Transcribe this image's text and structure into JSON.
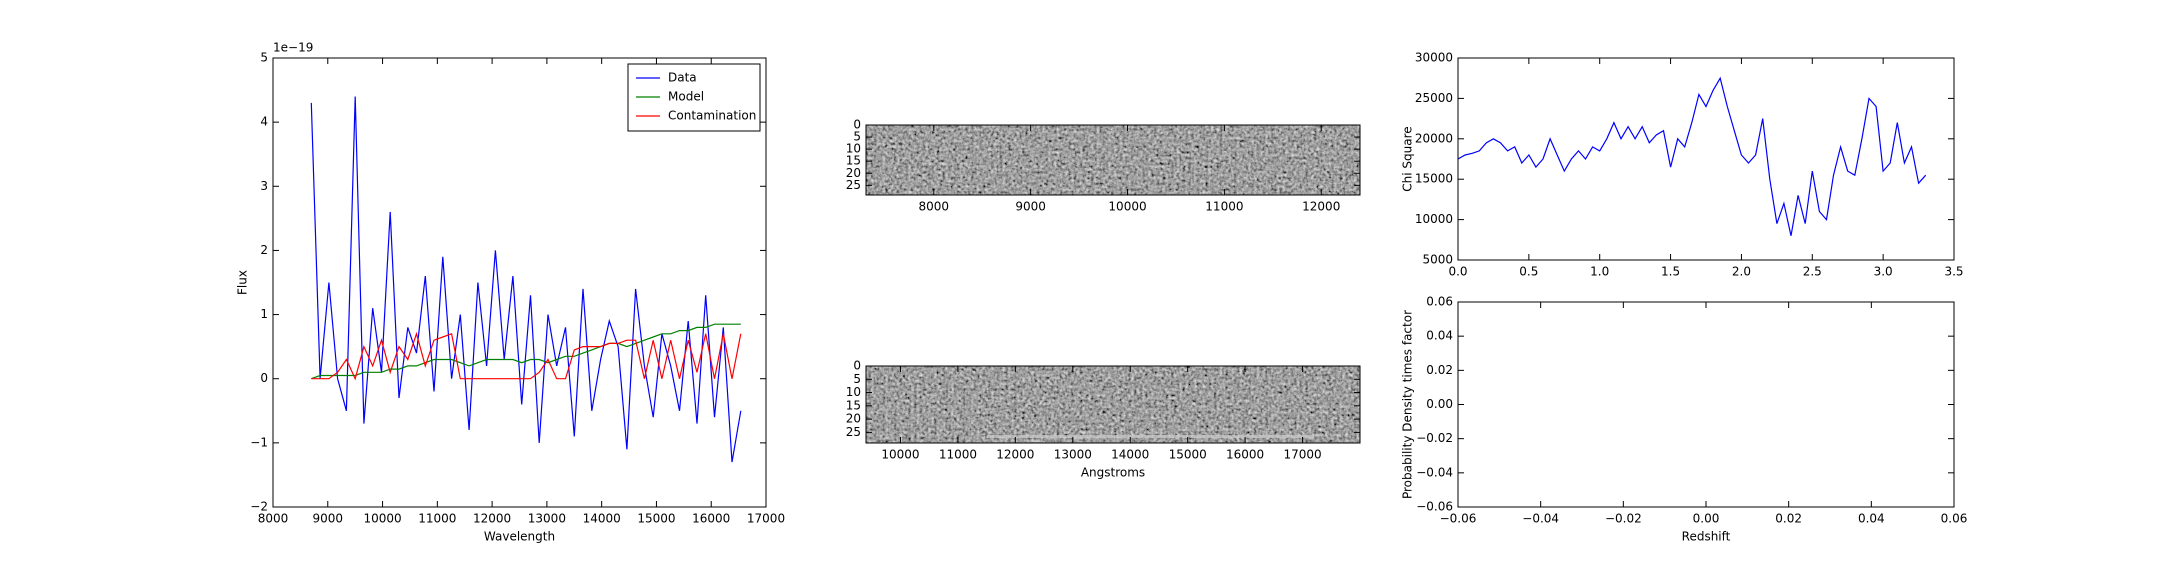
{
  "chart_data": [
    {
      "type": "line",
      "xlabel": "Wavelength",
      "ylabel": "Flux",
      "offset_label": "1e−19",
      "xlim": [
        8000,
        17000
      ],
      "xticks": [
        8000,
        9000,
        10000,
        11000,
        12000,
        13000,
        14000,
        15000,
        16000,
        17000
      ],
      "ylim": [
        -2,
        5
      ],
      "yticks": [
        {
          "value": -2,
          "label": "−2"
        },
        {
          "value": -1,
          "label": "−1"
        },
        0,
        1,
        2,
        3,
        4,
        5
      ],
      "legend": "upper right",
      "x": [
        8700,
        8860,
        9020,
        9180,
        9340,
        9500,
        9660,
        9820,
        9980,
        10140,
        10300,
        10460,
        10620,
        10780,
        10940,
        11100,
        11260,
        11420,
        11580,
        11740,
        11900,
        12060,
        12220,
        12380,
        12540,
        12700,
        12860,
        13020,
        13180,
        13340,
        13500,
        13660,
        13820,
        13980,
        14140,
        14300,
        14460,
        14620,
        14780,
        14940,
        15100,
        15260,
        15420,
        15580,
        15740,
        15900,
        16060,
        16220,
        16380,
        16540
      ],
      "series": [
        {
          "name": "Data",
          "color": "#0000ff",
          "values": [
            4.3,
            0,
            1.5,
            0,
            -0.5,
            4.4,
            -0.7,
            1.1,
            0.1,
            2.6,
            -0.3,
            0.8,
            0.4,
            1.6,
            -0.2,
            1.9,
            0.0,
            1.0,
            -0.8,
            1.5,
            0.2,
            2.0,
            0.3,
            1.6,
            -0.4,
            1.3,
            -1.0,
            1.0,
            0.2,
            0.8,
            -0.9,
            1.4,
            -0.5,
            0.3,
            0.9,
            0.5,
            -1.1,
            1.4,
            0.2,
            -0.6,
            0.7,
            0.2,
            -0.5,
            0.9,
            -0.7,
            1.3,
            -0.6,
            0.8,
            -1.3,
            -0.5
          ]
        },
        {
          "name": "Model",
          "color": "#008000",
          "values": [
            0,
            0.05,
            0.05,
            0.05,
            0.05,
            0.05,
            0.1,
            0.1,
            0.1,
            0.15,
            0.15,
            0.2,
            0.2,
            0.25,
            0.3,
            0.3,
            0.3,
            0.25,
            0.2,
            0.25,
            0.3,
            0.3,
            0.3,
            0.3,
            0.25,
            0.3,
            0.3,
            0.25,
            0.3,
            0.35,
            0.35,
            0.4,
            0.45,
            0.5,
            0.55,
            0.55,
            0.5,
            0.55,
            0.6,
            0.65,
            0.7,
            0.7,
            0.75,
            0.75,
            0.8,
            0.8,
            0.85,
            0.85,
            0.85,
            0.85
          ]
        },
        {
          "name": "Contamination",
          "color": "#ff0000",
          "values": [
            0,
            0,
            0,
            0.1,
            0.3,
            0,
            0.5,
            0.2,
            0.6,
            0.1,
            0.5,
            0.3,
            0.7,
            0.2,
            0.6,
            0.65,
            0.7,
            0,
            0,
            0,
            0,
            0,
            0,
            0,
            0,
            0,
            0.1,
            0.3,
            0,
            0,
            0.45,
            0.5,
            0.5,
            0.5,
            0.55,
            0.55,
            0.6,
            0.6,
            0,
            0.6,
            0,
            0.6,
            0,
            0.6,
            0.1,
            0.7,
            0,
            0.7,
            0,
            0.7
          ]
        }
      ]
    },
    {
      "type": "image",
      "xlim": [
        7300,
        12400
      ],
      "xticks": [
        8000,
        9000,
        10000,
        11000,
        12000
      ],
      "ylim": [
        29,
        0
      ],
      "yticks": [
        0,
        5,
        10,
        15,
        20,
        25
      ]
    },
    {
      "type": "image",
      "xlabel": "Angstroms",
      "xlim": [
        9400,
        18000
      ],
      "xticks": [
        10000,
        11000,
        12000,
        13000,
        14000,
        15000,
        16000,
        17000
      ],
      "ylim": [
        29,
        0
      ],
      "yticks": [
        0,
        5,
        10,
        15,
        20,
        25
      ]
    },
    {
      "type": "line",
      "ylabel": "Chi Square",
      "xlim": [
        0,
        3.5
      ],
      "xticks": [
        {
          "value": 0,
          "label": "0.0"
        },
        0.5,
        {
          "value": 1,
          "label": "1.0"
        },
        1.5,
        {
          "value": 2,
          "label": "2.0"
        },
        2.5,
        {
          "value": 3,
          "label": "3.0"
        },
        3.5
      ],
      "ylim": [
        5000,
        30000
      ],
      "yticks": [
        5000,
        10000,
        15000,
        20000,
        25000,
        30000
      ],
      "x": [
        0,
        0.05,
        0.1,
        0.15,
        0.2,
        0.25,
        0.3,
        0.35,
        0.4,
        0.45,
        0.5,
        0.55,
        0.6,
        0.65,
        0.7,
        0.75,
        0.8,
        0.85,
        0.9,
        0.95,
        1.0,
        1.05,
        1.1,
        1.15,
        1.2,
        1.25,
        1.3,
        1.35,
        1.4,
        1.45,
        1.5,
        1.55,
        1.6,
        1.65,
        1.7,
        1.75,
        1.8,
        1.85,
        1.9,
        1.95,
        2.0,
        2.05,
        2.1,
        2.15,
        2.2,
        2.25,
        2.3,
        2.35,
        2.4,
        2.45,
        2.5,
        2.55,
        2.6,
        2.65,
        2.7,
        2.75,
        2.8,
        2.85,
        2.9,
        2.95,
        3.0,
        3.05,
        3.1,
        3.15,
        3.2,
        3.25,
        3.3
      ],
      "series": [
        {
          "color": "#0000ff",
          "values": [
            17500,
            18000,
            18200,
            18500,
            19500,
            20000,
            19500,
            18500,
            19000,
            17000,
            18000,
            16500,
            17500,
            20000,
            18000,
            16000,
            17500,
            18500,
            17500,
            19000,
            18500,
            20000,
            22000,
            20000,
            21500,
            20000,
            21500,
            19500,
            20500,
            21000,
            16500,
            20000,
            19000,
            22000,
            25500,
            24000,
            26000,
            27500,
            24000,
            21000,
            18000,
            17000,
            18000,
            22500,
            15000,
            9500,
            12000,
            8000,
            13000,
            9500,
            16000,
            11000,
            10000,
            15500,
            19000,
            16000,
            15500,
            20000,
            25000,
            24000,
            16000,
            17000,
            22000,
            17000,
            19000,
            14500,
            15500
          ]
        }
      ]
    },
    {
      "type": "line",
      "xlabel": "Redshift",
      "ylabel": "Probability Density times factor",
      "xlim": [
        -0.06,
        0.06
      ],
      "xticks": [
        {
          "value": -0.06,
          "label": "−0.06"
        },
        {
          "value": -0.04,
          "label": "−0.04"
        },
        {
          "value": -0.02,
          "label": "−0.02"
        },
        {
          "value": 0,
          "label": "0.00"
        },
        0.02,
        0.04,
        0.06
      ],
      "ylim": [
        -0.06,
        0.06
      ],
      "yticks": [
        {
          "value": -0.06,
          "label": "−0.06"
        },
        {
          "value": -0.04,
          "label": "−0.04"
        },
        {
          "value": -0.02,
          "label": "−0.02"
        },
        {
          "value": 0,
          "label": "0.00"
        },
        0.02,
        0.04,
        0.06
      ],
      "x": [],
      "series": []
    }
  ]
}
